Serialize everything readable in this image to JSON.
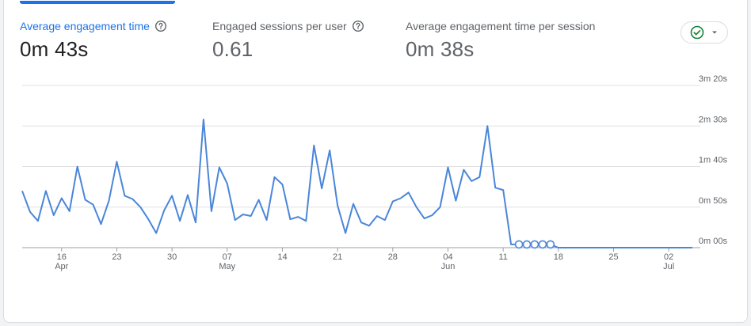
{
  "metrics": [
    {
      "label": "Average engagement time",
      "value": "0m 43s",
      "active": true
    },
    {
      "label": "Engaged sessions per user",
      "value": "0.61",
      "active": false
    },
    {
      "label": "Average engagement time per session",
      "value": "0m 38s",
      "active": false
    }
  ],
  "colors": {
    "accent": "#1a73e8",
    "line": "#4a86d9",
    "check": "#188038"
  },
  "chart_data": {
    "type": "line",
    "y_tick_labels": [
      "0m 00s",
      "0m 50s",
      "1m 40s",
      "2m 30s",
      "3m 20s"
    ],
    "y_tick_values": [
      0,
      50,
      100,
      150,
      200
    ],
    "ylim": [
      0,
      200
    ],
    "xlim": [
      "2024-04-11",
      "2024-07-06"
    ],
    "x_ticks": [
      {
        "date": "2024-04-16",
        "day": "16",
        "month": "Apr"
      },
      {
        "date": "2024-04-23",
        "day": "23",
        "month": ""
      },
      {
        "date": "2024-04-30",
        "day": "30",
        "month": ""
      },
      {
        "date": "2024-05-07",
        "day": "07",
        "month": "May"
      },
      {
        "date": "2024-05-14",
        "day": "14",
        "month": ""
      },
      {
        "date": "2024-05-21",
        "day": "21",
        "month": ""
      },
      {
        "date": "2024-05-28",
        "day": "28",
        "month": ""
      },
      {
        "date": "2024-06-04",
        "day": "04",
        "month": "Jun"
      },
      {
        "date": "2024-06-11",
        "day": "11",
        "month": ""
      },
      {
        "date": "2024-06-18",
        "day": "18",
        "month": ""
      },
      {
        "date": "2024-06-25",
        "day": "25",
        "month": ""
      },
      {
        "date": "2024-07-02",
        "day": "02",
        "month": "Jul"
      }
    ],
    "series": [
      {
        "x": [
          "2024-04-11",
          "2024-04-12",
          "2024-04-13",
          "2024-04-14",
          "2024-04-15",
          "2024-04-16",
          "2024-04-17",
          "2024-04-18",
          "2024-04-19",
          "2024-04-20",
          "2024-04-21",
          "2024-04-22",
          "2024-04-23",
          "2024-04-24",
          "2024-04-25",
          "2024-04-26",
          "2024-04-27",
          "2024-04-28",
          "2024-04-29",
          "2024-04-30",
          "2024-05-01",
          "2024-05-02",
          "2024-05-03",
          "2024-05-04",
          "2024-05-05",
          "2024-05-06",
          "2024-05-07",
          "2024-05-08",
          "2024-05-09",
          "2024-05-10",
          "2024-05-11",
          "2024-05-12",
          "2024-05-13",
          "2024-05-14",
          "2024-05-15",
          "2024-05-16",
          "2024-05-17",
          "2024-05-18",
          "2024-05-19",
          "2024-05-20",
          "2024-05-21",
          "2024-05-22",
          "2024-05-23",
          "2024-05-24",
          "2024-05-25",
          "2024-05-26",
          "2024-05-27",
          "2024-05-28",
          "2024-05-29",
          "2024-05-30",
          "2024-05-31",
          "2024-06-01",
          "2024-06-02",
          "2024-06-03",
          "2024-06-04",
          "2024-06-05",
          "2024-06-06",
          "2024-06-07",
          "2024-06-08",
          "2024-06-09",
          "2024-06-10",
          "2024-06-11",
          "2024-06-12",
          "2024-06-13",
          "2024-06-14",
          "2024-06-15",
          "2024-06-16",
          "2024-06-17",
          "2024-06-18",
          "2024-07-05"
        ],
        "values": [
          70,
          44,
          33,
          70,
          40,
          61,
          45,
          100,
          59,
          53,
          29,
          58,
          106,
          64,
          60,
          50,
          35,
          18,
          46,
          64,
          33,
          65,
          31,
          158,
          45,
          99,
          79,
          34,
          41,
          39,
          59,
          34,
          87,
          78,
          35,
          38,
          33,
          126,
          73,
          120,
          52,
          18,
          54,
          31,
          27,
          39,
          34,
          57,
          61,
          68,
          50,
          36,
          40,
          50,
          99,
          58,
          96,
          82,
          87,
          150,
          74,
          71,
          4,
          4,
          4,
          4,
          4,
          4,
          0,
          0
        ],
        "markers": [
          "2024-06-13",
          "2024-06-14",
          "2024-06-15",
          "2024-06-16",
          "2024-06-17"
        ]
      }
    ]
  }
}
